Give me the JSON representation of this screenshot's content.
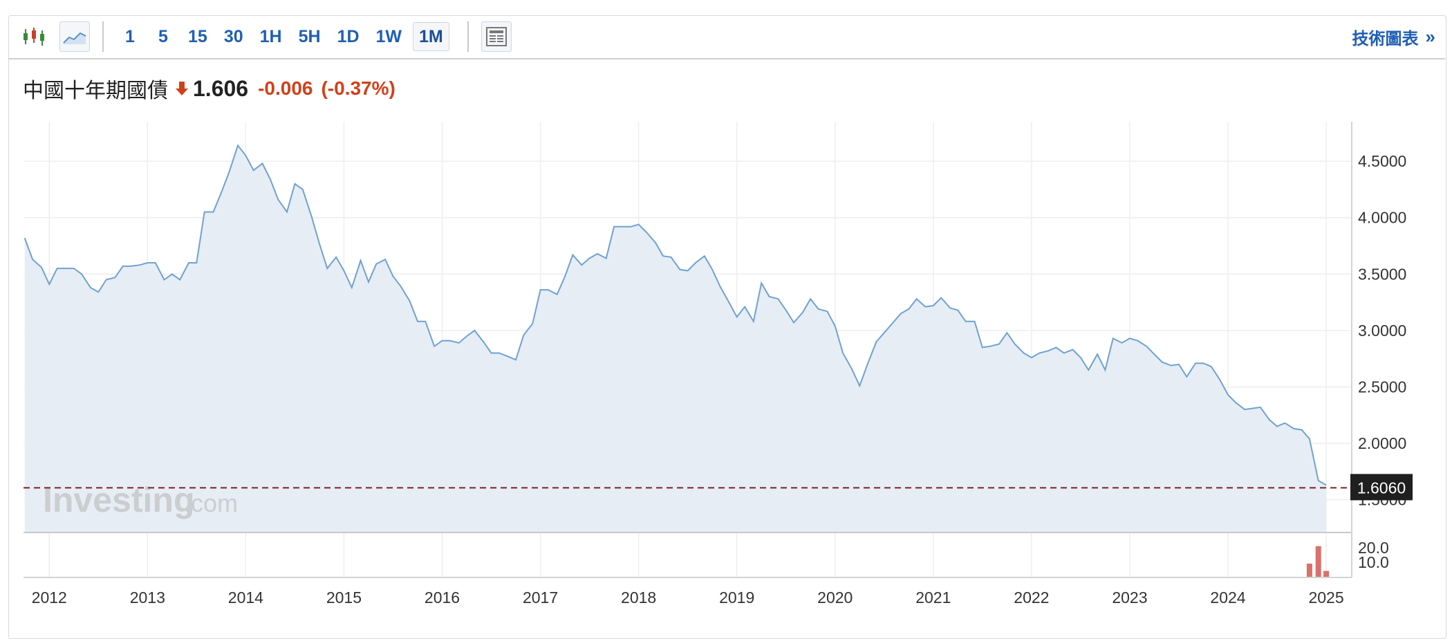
{
  "toolbar": {
    "intervals": [
      "1",
      "5",
      "15",
      "30",
      "1H",
      "5H",
      "1D",
      "1W",
      "1M"
    ],
    "active_interval": "1M",
    "tech_chart_label": "技術圖表",
    "tech_chart_chevron": "»",
    "icons": [
      "candlestick-icon",
      "area-chart-icon",
      "layout-icon"
    ]
  },
  "quote": {
    "name": "中國十年期國債",
    "price": "1.606",
    "change": "-0.006",
    "change_pct": "(-0.37%)",
    "direction": "down",
    "down_color": "#d2401a"
  },
  "watermark": {
    "brand": "Investing",
    "suffix": ".com"
  },
  "chart_data": {
    "type": "area",
    "title": "",
    "xlabel": "",
    "ylabel": "",
    "x_ticks": [
      "2012",
      "2013",
      "2014",
      "2015",
      "2016",
      "2017",
      "2018",
      "2019",
      "2020",
      "2021",
      "2022",
      "2023",
      "2024",
      "2025"
    ],
    "y_ticks": [
      "1.5000",
      "2.0000",
      "2.5000",
      "3.0000",
      "3.5000",
      "4.0000",
      "4.5000"
    ],
    "ylim": [
      1.21,
      4.85
    ],
    "grid": true,
    "line_color": "#6fa1d2",
    "fill_color": "#e6edf5",
    "current_value": 1.606,
    "current_value_label": "1.6060",
    "series": [
      {
        "points": [
          [
            2011.75,
            3.82
          ],
          [
            2011.83,
            3.63
          ],
          [
            2011.92,
            3.56
          ],
          [
            2012.0,
            3.41
          ],
          [
            2012.08,
            3.55
          ],
          [
            2012.17,
            3.55
          ],
          [
            2012.25,
            3.55
          ],
          [
            2012.33,
            3.5
          ],
          [
            2012.42,
            3.38
          ],
          [
            2012.5,
            3.34
          ],
          [
            2012.58,
            3.45
          ],
          [
            2012.67,
            3.47
          ],
          [
            2012.75,
            3.57
          ],
          [
            2012.83,
            3.57
          ],
          [
            2012.92,
            3.58
          ],
          [
            2013.0,
            3.6
          ],
          [
            2013.08,
            3.6
          ],
          [
            2013.17,
            3.45
          ],
          [
            2013.25,
            3.5
          ],
          [
            2013.33,
            3.45
          ],
          [
            2013.42,
            3.6
          ],
          [
            2013.5,
            3.6
          ],
          [
            2013.58,
            4.05
          ],
          [
            2013.67,
            4.05
          ],
          [
            2013.75,
            4.22
          ],
          [
            2013.83,
            4.4
          ],
          [
            2013.92,
            4.64
          ],
          [
            2014.0,
            4.55
          ],
          [
            2014.08,
            4.42
          ],
          [
            2014.17,
            4.48
          ],
          [
            2014.25,
            4.34
          ],
          [
            2014.33,
            4.16
          ],
          [
            2014.42,
            4.05
          ],
          [
            2014.5,
            4.3
          ],
          [
            2014.58,
            4.25
          ],
          [
            2014.67,
            4.01
          ],
          [
            2014.75,
            3.77
          ],
          [
            2014.83,
            3.55
          ],
          [
            2014.92,
            3.65
          ],
          [
            2015.0,
            3.53
          ],
          [
            2015.08,
            3.38
          ],
          [
            2015.17,
            3.62
          ],
          [
            2015.25,
            3.43
          ],
          [
            2015.33,
            3.59
          ],
          [
            2015.42,
            3.63
          ],
          [
            2015.5,
            3.48
          ],
          [
            2015.58,
            3.39
          ],
          [
            2015.67,
            3.26
          ],
          [
            2015.75,
            3.08
          ],
          [
            2015.83,
            3.08
          ],
          [
            2015.92,
            2.86
          ],
          [
            2016.0,
            2.91
          ],
          [
            2016.08,
            2.91
          ],
          [
            2016.17,
            2.89
          ],
          [
            2016.25,
            2.95
          ],
          [
            2016.33,
            3.0
          ],
          [
            2016.42,
            2.9
          ],
          [
            2016.5,
            2.8
          ],
          [
            2016.58,
            2.8
          ],
          [
            2016.67,
            2.77
          ],
          [
            2016.75,
            2.74
          ],
          [
            2016.83,
            2.96
          ],
          [
            2016.92,
            3.06
          ],
          [
            2017.0,
            3.36
          ],
          [
            2017.08,
            3.36
          ],
          [
            2017.17,
            3.32
          ],
          [
            2017.25,
            3.48
          ],
          [
            2017.33,
            3.67
          ],
          [
            2017.42,
            3.58
          ],
          [
            2017.5,
            3.64
          ],
          [
            2017.58,
            3.68
          ],
          [
            2017.67,
            3.64
          ],
          [
            2017.75,
            3.92
          ],
          [
            2017.83,
            3.92
          ],
          [
            2017.92,
            3.92
          ],
          [
            2018.0,
            3.94
          ],
          [
            2018.08,
            3.87
          ],
          [
            2018.17,
            3.78
          ],
          [
            2018.25,
            3.66
          ],
          [
            2018.33,
            3.65
          ],
          [
            2018.42,
            3.54
          ],
          [
            2018.5,
            3.53
          ],
          [
            2018.58,
            3.6
          ],
          [
            2018.67,
            3.66
          ],
          [
            2018.75,
            3.54
          ],
          [
            2018.83,
            3.39
          ],
          [
            2018.92,
            3.25
          ],
          [
            2019.0,
            3.12
          ],
          [
            2019.08,
            3.21
          ],
          [
            2019.17,
            3.08
          ],
          [
            2019.25,
            3.42
          ],
          [
            2019.33,
            3.3
          ],
          [
            2019.42,
            3.28
          ],
          [
            2019.5,
            3.18
          ],
          [
            2019.58,
            3.07
          ],
          [
            2019.67,
            3.16
          ],
          [
            2019.75,
            3.28
          ],
          [
            2019.83,
            3.19
          ],
          [
            2019.92,
            3.17
          ],
          [
            2020.0,
            3.04
          ],
          [
            2020.08,
            2.8
          ],
          [
            2020.17,
            2.66
          ],
          [
            2020.25,
            2.51
          ],
          [
            2020.33,
            2.7
          ],
          [
            2020.42,
            2.9
          ],
          [
            2020.5,
            2.98
          ],
          [
            2020.58,
            3.06
          ],
          [
            2020.67,
            3.15
          ],
          [
            2020.75,
            3.19
          ],
          [
            2020.83,
            3.28
          ],
          [
            2020.92,
            3.21
          ],
          [
            2021.0,
            3.22
          ],
          [
            2021.08,
            3.29
          ],
          [
            2021.17,
            3.2
          ],
          [
            2021.25,
            3.18
          ],
          [
            2021.33,
            3.08
          ],
          [
            2021.42,
            3.08
          ],
          [
            2021.5,
            2.85
          ],
          [
            2021.58,
            2.86
          ],
          [
            2021.67,
            2.88
          ],
          [
            2021.75,
            2.98
          ],
          [
            2021.83,
            2.88
          ],
          [
            2021.92,
            2.8
          ],
          [
            2022.0,
            2.76
          ],
          [
            2022.08,
            2.8
          ],
          [
            2022.17,
            2.82
          ],
          [
            2022.25,
            2.85
          ],
          [
            2022.33,
            2.8
          ],
          [
            2022.42,
            2.83
          ],
          [
            2022.5,
            2.76
          ],
          [
            2022.58,
            2.65
          ],
          [
            2022.67,
            2.79
          ],
          [
            2022.75,
            2.65
          ],
          [
            2022.83,
            2.93
          ],
          [
            2022.92,
            2.89
          ],
          [
            2023.0,
            2.93
          ],
          [
            2023.08,
            2.91
          ],
          [
            2023.17,
            2.86
          ],
          [
            2023.25,
            2.79
          ],
          [
            2023.33,
            2.72
          ],
          [
            2023.42,
            2.69
          ],
          [
            2023.5,
            2.7
          ],
          [
            2023.58,
            2.59
          ],
          [
            2023.67,
            2.71
          ],
          [
            2023.75,
            2.71
          ],
          [
            2023.83,
            2.68
          ],
          [
            2023.92,
            2.56
          ],
          [
            2024.0,
            2.43
          ],
          [
            2024.08,
            2.36
          ],
          [
            2024.17,
            2.3
          ],
          [
            2024.25,
            2.31
          ],
          [
            2024.33,
            2.32
          ],
          [
            2024.42,
            2.21
          ],
          [
            2024.5,
            2.15
          ],
          [
            2024.58,
            2.18
          ],
          [
            2024.67,
            2.13
          ],
          [
            2024.75,
            2.12
          ],
          [
            2024.83,
            2.04
          ],
          [
            2024.92,
            1.67
          ],
          [
            2025.0,
            1.63
          ]
        ]
      }
    ],
    "volume": {
      "y_ticks": [
        "10.0",
        "20.0"
      ],
      "ylim": [
        0,
        28
      ],
      "bar_color": "#d9706a",
      "bars": [
        [
          2024.83,
          9
        ],
        [
          2024.92,
          21
        ],
        [
          2025.0,
          4
        ]
      ]
    }
  }
}
